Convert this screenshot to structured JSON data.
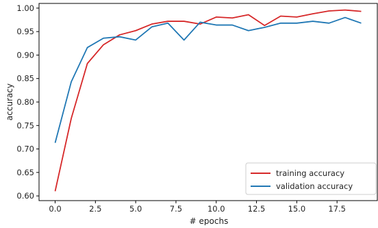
{
  "chart_data": {
    "type": "line",
    "title": "",
    "xlabel": "# epochs",
    "ylabel": "accuracy",
    "xlim": [
      -1,
      20
    ],
    "ylim": [
      0.59,
      1.01
    ],
    "xticks": [
      0.0,
      2.5,
      5.0,
      7.5,
      10.0,
      12.5,
      15.0,
      17.5
    ],
    "xtick_labels": [
      "0.0",
      "2.5",
      "5.0",
      "7.5",
      "10.0",
      "12.5",
      "15.0",
      "17.5"
    ],
    "yticks": [
      0.6,
      0.65,
      0.7,
      0.75,
      0.8,
      0.85,
      0.9,
      0.95,
      1.0
    ],
    "ytick_labels": [
      "0.60",
      "0.65",
      "0.70",
      "0.75",
      "0.80",
      "0.85",
      "0.90",
      "0.95",
      "1.00"
    ],
    "x": [
      0,
      1,
      2,
      3,
      4,
      5,
      6,
      7,
      8,
      9,
      10,
      11,
      12,
      13,
      14,
      15,
      16,
      17,
      18,
      19
    ],
    "series": [
      {
        "name": "training accuracy",
        "color": "#d62728",
        "values": [
          0.61,
          0.765,
          0.882,
          0.922,
          0.943,
          0.952,
          0.966,
          0.972,
          0.972,
          0.966,
          0.981,
          0.979,
          0.986,
          0.963,
          0.983,
          0.981,
          0.988,
          0.994,
          0.996,
          0.993
        ]
      },
      {
        "name": "validation accuracy",
        "color": "#1f77b4",
        "values": [
          0.713,
          0.843,
          0.916,
          0.936,
          0.939,
          0.932,
          0.96,
          0.968,
          0.932,
          0.97,
          0.964,
          0.964,
          0.952,
          0.959,
          0.968,
          0.968,
          0.972,
          0.968,
          0.98,
          0.968
        ]
      }
    ],
    "grid": false,
    "legend_position": "bottom-right"
  }
}
